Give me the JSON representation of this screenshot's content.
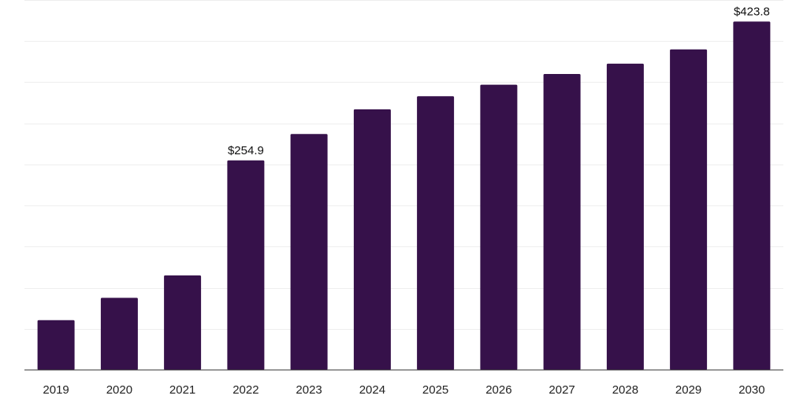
{
  "chart_data": {
    "type": "bar",
    "title": "",
    "xlabel": "",
    "ylabel": "",
    "categories": [
      "2019",
      "2020",
      "2021",
      "2022",
      "2023",
      "2024",
      "2025",
      "2026",
      "2027",
      "2028",
      "2029",
      "2030"
    ],
    "values": [
      60.5,
      87.7,
      115.0,
      254.9,
      287.0,
      317.0,
      333.0,
      347.0,
      360.0,
      372.5,
      390.0,
      423.8
    ],
    "ylim": [
      0,
      450
    ],
    "grid": true,
    "color": "#36114a",
    "data_labels": [
      {
        "index": 3,
        "text": "$254.9"
      },
      {
        "index": 11,
        "text": "$423.8"
      }
    ]
  }
}
